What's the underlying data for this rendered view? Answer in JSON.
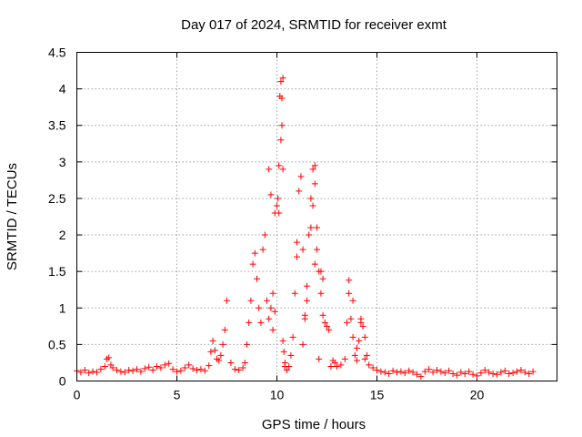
{
  "chart_data": {
    "type": "scatter",
    "title": "Day 017 of 2024, SRMTID for receiver exmt",
    "xlabel": "GPS time / hours",
    "ylabel": "SRMTID / TECUs",
    "xlim": [
      0,
      24
    ],
    "ylim": [
      0,
      4.5
    ],
    "grid": true,
    "marker": "plus",
    "color": "#ff0000",
    "x_ticks": [
      0,
      5,
      10,
      15,
      20
    ],
    "x_tick_labels": [
      "0",
      "5",
      "10",
      "15",
      "20"
    ],
    "y_ticks": [
      0,
      0.5,
      1,
      1.5,
      2,
      2.5,
      3,
      3.5,
      4,
      4.5
    ],
    "y_tick_labels": [
      "0",
      "0.5",
      "1",
      "1.5",
      "2",
      "2.5",
      "3",
      "3.5",
      "4",
      "4.5"
    ],
    "series": [
      {
        "name": "SRMTID",
        "x": [
          0.0,
          0.2,
          0.4,
          0.6,
          0.8,
          1.0,
          1.2,
          1.4,
          1.5,
          1.6,
          1.7,
          1.8,
          2.0,
          2.2,
          2.4,
          2.6,
          2.8,
          3.0,
          3.2,
          3.4,
          3.6,
          3.8,
          4.0,
          4.2,
          4.4,
          4.6,
          4.8,
          5.0,
          5.2,
          5.4,
          5.6,
          5.8,
          6.0,
          6.2,
          6.4,
          6.6,
          6.7,
          6.8,
          6.9,
          7.0,
          7.1,
          7.2,
          7.3,
          7.4,
          7.5,
          7.7,
          7.9,
          8.1,
          8.3,
          8.4,
          8.5,
          8.6,
          8.7,
          8.8,
          8.9,
          9.0,
          9.1,
          9.2,
          9.3,
          9.4,
          9.5,
          9.6,
          9.7,
          9.8,
          9.9,
          10.0,
          10.05,
          10.1,
          10.15,
          10.2,
          10.25,
          10.3,
          10.35,
          10.4,
          10.5,
          10.6,
          10.7,
          10.8,
          10.9,
          11.0,
          11.1,
          11.2,
          11.3,
          11.4,
          11.5,
          11.6,
          11.7,
          11.8,
          11.9,
          12.0,
          12.1,
          12.2,
          12.3,
          12.4,
          12.5,
          12.6,
          12.7,
          12.8,
          12.9,
          13.0,
          13.2,
          13.4,
          13.5,
          13.6,
          13.7,
          13.8,
          13.9,
          14.0,
          14.1,
          14.2,
          14.3,
          14.4,
          14.5,
          14.6,
          14.8,
          15.0,
          15.2,
          15.4,
          15.6,
          15.8,
          16.0,
          16.2,
          16.4,
          16.6,
          16.8,
          17.0,
          17.2,
          17.4,
          17.6,
          17.8,
          18.0,
          18.2,
          18.4,
          18.6,
          18.8,
          19.0,
          19.2,
          19.4,
          19.6,
          19.8,
          20.0,
          20.2,
          20.4,
          20.6,
          20.8,
          21.0,
          21.2,
          21.4,
          21.6,
          21.8,
          22.0,
          22.2,
          22.4,
          22.6,
          22.8,
          9.6,
          9.7,
          9.9,
          10.1,
          10.2,
          10.25,
          10.3,
          11.3,
          11.5,
          11.7,
          11.8,
          11.9,
          12.0,
          12.2,
          13.6,
          13.8,
          14.0,
          14.2,
          14.4,
          10.3,
          11.9,
          12.1,
          9.8,
          10.4,
          11.0,
          11.4,
          12.3
        ],
        "y": [
          0.14,
          0.12,
          0.15,
          0.11,
          0.13,
          0.12,
          0.16,
          0.2,
          0.3,
          0.32,
          0.22,
          0.18,
          0.15,
          0.13,
          0.12,
          0.15,
          0.14,
          0.16,
          0.13,
          0.17,
          0.19,
          0.15,
          0.2,
          0.18,
          0.22,
          0.24,
          0.16,
          0.13,
          0.14,
          0.18,
          0.22,
          0.17,
          0.15,
          0.16,
          0.14,
          0.21,
          0.4,
          0.55,
          0.42,
          0.3,
          0.28,
          0.35,
          0.5,
          0.7,
          1.1,
          0.25,
          0.16,
          0.15,
          0.18,
          0.25,
          0.5,
          0.8,
          1.1,
          1.6,
          1.75,
          1.4,
          1.0,
          0.8,
          1.8,
          2.0,
          1.1,
          0.85,
          1.0,
          1.2,
          0.95,
          2.4,
          2.5,
          2.95,
          3.9,
          4.1,
          3.5,
          0.55,
          0.4,
          0.25,
          0.15,
          0.2,
          0.35,
          0.6,
          1.2,
          1.9,
          2.6,
          2.8,
          1.8,
          0.9,
          1.1,
          2.0,
          2.5,
          2.9,
          2.95,
          1.8,
          0.3,
          1.2,
          0.9,
          0.8,
          0.75,
          0.7,
          0.2,
          0.28,
          0.25,
          0.2,
          0.22,
          0.3,
          0.8,
          1.2,
          0.85,
          0.6,
          0.35,
          0.28,
          0.55,
          0.8,
          0.75,
          0.6,
          0.35,
          0.22,
          0.18,
          0.15,
          0.13,
          0.12,
          0.1,
          0.14,
          0.12,
          0.13,
          0.11,
          0.14,
          0.12,
          0.09,
          0.06,
          0.13,
          0.16,
          0.12,
          0.15,
          0.13,
          0.11,
          0.14,
          0.1,
          0.08,
          0.12,
          0.1,
          0.13,
          0.09,
          0.07,
          0.11,
          0.15,
          0.12,
          0.1,
          0.09,
          0.12,
          0.14,
          0.1,
          0.11,
          0.13,
          0.15,
          0.12,
          0.1,
          0.13,
          2.9,
          2.55,
          2.3,
          2.3,
          3.3,
          3.87,
          4.15,
          0.5,
          1.3,
          2.1,
          2.4,
          2.7,
          2.1,
          1.5,
          1.38,
          1.1,
          0.45,
          0.85,
          0.3,
          2.9,
          1.6,
          1.5,
          0.7,
          0.2,
          1.7,
          0.85,
          1.4
        ]
      }
    ]
  }
}
